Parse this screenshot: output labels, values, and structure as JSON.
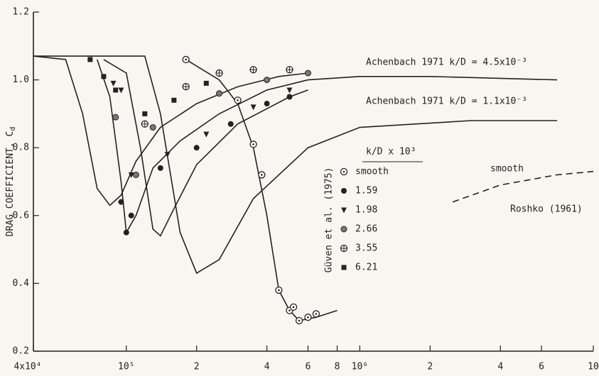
{
  "chart_data": {
    "type": "line",
    "y_label": {
      "text": "DRAG COEFFICIENT, C",
      "sub": "d"
    },
    "xscale": "log",
    "xlim": [
      40000,
      10000000
    ],
    "ylim": [
      0.2,
      1.2
    ],
    "xticks": [
      {
        "value": 40000,
        "label": "4x10⁴"
      },
      {
        "value": 100000,
        "label": "10⁵"
      },
      {
        "value": 200000,
        "label": "2"
      },
      {
        "value": 400000,
        "label": "4"
      },
      {
        "value": 600000,
        "label": "6"
      },
      {
        "value": 800000,
        "label": "8"
      },
      {
        "value": 1000000,
        "label": "10⁶"
      },
      {
        "value": 2000000,
        "label": "2"
      },
      {
        "value": 4000000,
        "label": "4"
      },
      {
        "value": 6000000,
        "label": "6"
      },
      {
        "value": 10000000,
        "label": "10"
      }
    ],
    "yticks": [
      0.2,
      0.4,
      0.6,
      0.8,
      {
        "value": 1,
        "label": "1.0"
      },
      1.2
    ],
    "annotations": [
      "Achenbach 1971  k/D = 4.5x10⁻³",
      "Achenbach 1971  k/D = 1.1x10⁻³",
      "smooth",
      "Roshko (1961)"
    ],
    "legend": {
      "title": "k/D x 10³",
      "group_label": "Güven et al. (1975)"
    },
    "series": [
      {
        "style": "solid",
        "color": "#222",
        "x": [
          40000,
          55000,
          65000,
          75000,
          85000,
          95000,
          110000,
          140000,
          200000,
          300000,
          450000,
          600000
        ],
        "values": [
          1.07,
          1.06,
          0.9,
          0.68,
          0.63,
          0.66,
          0.76,
          0.86,
          0.93,
          0.98,
          1.01,
          1.02
        ]
      },
      {
        "style": "solid",
        "color": "#222",
        "x": [
          75000,
          85000,
          95000,
          100000,
          110000,
          130000,
          170000,
          250000,
          400000,
          600000,
          1000000,
          2000000,
          7000000
        ],
        "values": [
          1.06,
          0.95,
          0.7,
          0.55,
          0.6,
          0.74,
          0.82,
          0.9,
          0.97,
          1.0,
          1.01,
          1.01,
          1.0
        ]
      },
      {
        "style": "solid",
        "color": "#222",
        "x": [
          80000,
          100000,
          115000,
          130000,
          140000,
          160000,
          200000,
          300000,
          500000,
          600000
        ],
        "values": [
          1.06,
          1.02,
          0.8,
          0.56,
          0.54,
          0.62,
          0.75,
          0.87,
          0.95,
          0.97
        ]
      },
      {
        "style": "solid",
        "color": "#222",
        "x": [
          40000,
          120000,
          140000,
          170000,
          200000,
          250000,
          350000,
          600000,
          1000000,
          3000000,
          7000000
        ],
        "values": [
          1.07,
          1.07,
          0.9,
          0.55,
          0.43,
          0.47,
          0.65,
          0.8,
          0.86,
          0.88,
          0.88
        ]
      },
      {
        "style": "solid",
        "color": "#222",
        "x": [
          180000,
          250000,
          300000,
          350000,
          400000,
          450000,
          500000,
          550000,
          650000,
          800000
        ],
        "values": [
          1.06,
          1.0,
          0.93,
          0.8,
          0.6,
          0.38,
          0.32,
          0.29,
          0.3,
          0.32
        ]
      },
      {
        "style": "dashed",
        "color": "#222",
        "x": [
          2500000,
          4000000,
          7000000,
          10000000
        ],
        "values": [
          0.64,
          0.69,
          0.72,
          0.73
        ]
      },
      {
        "name": "smooth",
        "marker": "circle-dot",
        "color": "#222",
        "x": [
          180000,
          300000,
          350000,
          380000,
          450000,
          500000,
          520000,
          550000,
          600000,
          650000
        ],
        "values": [
          1.06,
          0.94,
          0.81,
          0.72,
          0.38,
          0.32,
          0.33,
          0.29,
          0.3,
          0.31
        ]
      },
      {
        "name": "1.59",
        "marker": "circle",
        "color": "#222",
        "x": [
          100000,
          105000,
          95000,
          140000,
          200000,
          280000,
          400000,
          500000
        ],
        "values": [
          0.55,
          0.6,
          0.64,
          0.74,
          0.8,
          0.87,
          0.93,
          0.95
        ]
      },
      {
        "name": "1.98",
        "marker": "triangle",
        "color": "#222",
        "x": [
          88000,
          95000,
          105000,
          150000,
          220000,
          350000,
          500000
        ],
        "values": [
          0.99,
          0.97,
          0.72,
          0.78,
          0.84,
          0.92,
          0.97
        ]
      },
      {
        "name": "2.66",
        "marker": "gray-circle",
        "color": "#222",
        "x": [
          90000,
          110000,
          130000,
          250000,
          400000,
          600000
        ],
        "values": [
          0.89,
          0.72,
          0.86,
          0.96,
          1.0,
          1.02
        ]
      },
      {
        "name": "3.55",
        "marker": "circle-cross",
        "color": "#222",
        "x": [
          120000,
          180000,
          250000,
          350000,
          500000
        ],
        "values": [
          0.87,
          0.98,
          1.02,
          1.03,
          1.03
        ]
      },
      {
        "name": "6.21",
        "marker": "square",
        "color": "#222",
        "x": [
          70000,
          80000,
          90000,
          120000,
          160000,
          220000
        ],
        "values": [
          1.06,
          1.01,
          0.97,
          0.9,
          0.94,
          0.99
        ]
      }
    ]
  }
}
